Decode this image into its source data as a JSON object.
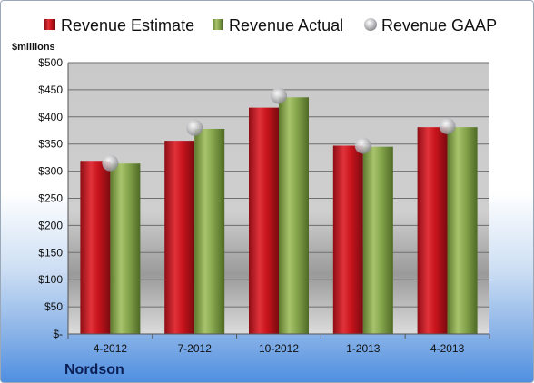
{
  "chart_data": {
    "type": "bar",
    "title": "",
    "y_unit_label": "$millions",
    "categories": [
      "4-2012",
      "7-2012",
      "10-2012",
      "1-2013",
      "4-2013"
    ],
    "series": [
      {
        "name": "Revenue Estimate",
        "values": [
          319,
          356,
          417,
          347,
          381
        ],
        "color": "#d8202a"
      },
      {
        "name": "Revenue Actual",
        "values": [
          314,
          378,
          436,
          345,
          381
        ],
        "color": "#8bab52"
      },
      {
        "name": "Revenue GAAP",
        "values": [
          315,
          380,
          439,
          347,
          383
        ],
        "color": "#c8c8cc"
      }
    ],
    "ylim": [
      0,
      500
    ],
    "y_ticks": [
      0,
      50,
      100,
      150,
      200,
      250,
      300,
      350,
      400,
      450,
      500
    ],
    "y_tick_labels": [
      "$-",
      "$50",
      "$100",
      "$150",
      "$200",
      "$250",
      "$300",
      "$350",
      "$400",
      "$450",
      "$500"
    ],
    "grid": true,
    "legend_position": "top"
  },
  "company": "Nordson"
}
